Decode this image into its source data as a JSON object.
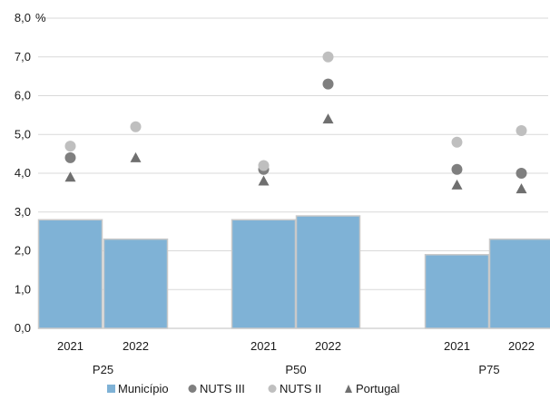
{
  "chart_data": {
    "type": "bar",
    "unit_label": "%",
    "ylim": [
      0,
      8
    ],
    "ytick_step": 1,
    "ytick_labels": [
      "0,0",
      "1,0",
      "2,0",
      "3,0",
      "4,0",
      "5,0",
      "6,0",
      "7,0",
      "8,0"
    ],
    "grid": true,
    "groups": [
      "P25",
      "P50",
      "P75"
    ],
    "years": [
      "2021",
      "2022"
    ],
    "categories": [
      "P25 2021",
      "P25 2022",
      "P50 2021",
      "P50 2022",
      "P75 2021",
      "P75 2022"
    ],
    "series": [
      {
        "name": "Município",
        "kind": "bar",
        "color": "#7fb2d6",
        "values": [
          2.8,
          2.3,
          2.8,
          2.9,
          1.9,
          2.3
        ]
      },
      {
        "name": "NUTS III",
        "kind": "circle",
        "color": "#7f7f7f",
        "values": [
          4.4,
          null,
          4.1,
          6.3,
          4.1,
          4.0
        ]
      },
      {
        "name": "NUTS II",
        "kind": "circle",
        "color": "#bfbfbf",
        "values": [
          4.7,
          5.2,
          4.2,
          7.0,
          4.8,
          5.1
        ]
      },
      {
        "name": "Portugal",
        "kind": "triangle",
        "color": "#6f6f6f",
        "values": [
          3.9,
          4.4,
          3.8,
          5.4,
          3.7,
          3.6
        ]
      }
    ],
    "legend": {
      "position": "bottom",
      "symbols": [
        "square",
        "circle",
        "circle",
        "triangle"
      ]
    }
  }
}
